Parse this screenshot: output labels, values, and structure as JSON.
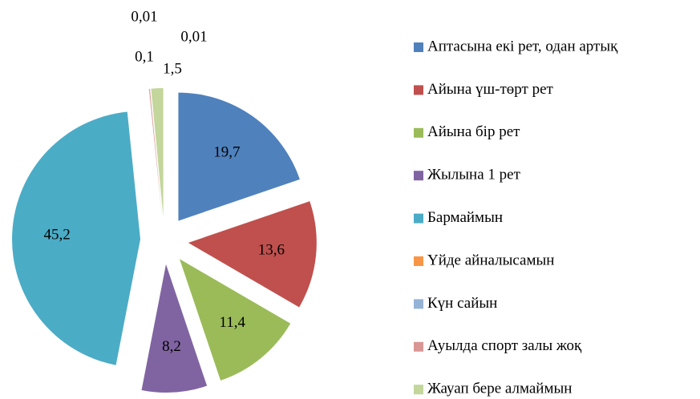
{
  "chart_data": {
    "type": "pie",
    "categories": [
      "Аптасына екі рет, одан артық",
      "Айына үш-төрт рет",
      "Айына бір рет",
      "Жылына 1 рет",
      "Бармаймын",
      "Үйде айналысамын",
      "Күн сайын",
      "Ауылда спорт залы жоқ",
      "Жауап бере алмаймын"
    ],
    "values": [
      19.7,
      13.6,
      11.4,
      8.2,
      45.2,
      0.01,
      0.01,
      0.1,
      1.5
    ],
    "value_labels": [
      "19,7",
      "13,6",
      "11,4",
      "8,2",
      "45,2",
      "0,01",
      "0,01",
      "0,1",
      "1,5"
    ],
    "colors": [
      "#4f81bd",
      "#c0504d",
      "#9bbb59",
      "#8064a2",
      "#4bacc6",
      "#f79646",
      "#95b3d7",
      "#d99694",
      "#c3d69b"
    ],
    "legend": "right"
  }
}
